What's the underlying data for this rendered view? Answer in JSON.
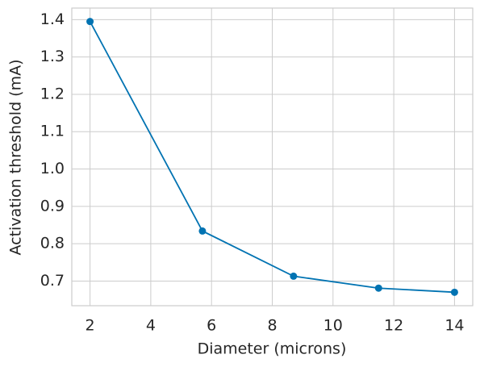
{
  "chart_data": {
    "type": "line",
    "x_label": "Diameter (microns)",
    "y_label": "Activation threshold (mA)",
    "x": [
      2,
      5.7,
      8.7,
      11.5,
      14
    ],
    "series": [
      {
        "color": "#0173b2",
        "values": [
          1.395,
          0.834,
          0.713,
          0.681,
          0.67
        ]
      }
    ],
    "xlim": [
      1.4,
      14.6
    ],
    "xticks": [
      2,
      4,
      6,
      8,
      10,
      12,
      14
    ],
    "ylim": [
      0.634,
      1.431
    ],
    "yticks": [
      0.7,
      0.8,
      0.9,
      {
        "value": 1.0,
        "label": "1.0"
      },
      1.1,
      1.2,
      1.3,
      1.4
    ],
    "grid": true
  }
}
